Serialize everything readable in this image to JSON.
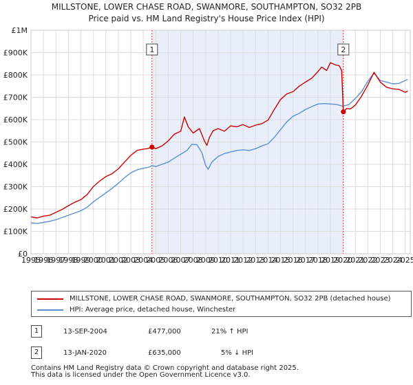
{
  "title_line1": "MILLSTONE, LOWER CHASE ROAD, SWANMORE, SOUTHAMPTON, SO32 2PB",
  "title_line2": "Price paid vs. HM Land Registry's House Price Index (HPI)",
  "chart_data": {
    "type": "line",
    "title": "MILLSTONE, LOWER CHASE ROAD, SWANMORE, SOUTHAMPTON, SO32 2PB — Price paid vs. HM Land Registry's House Price Index (HPI)",
    "xlim": [
      1995,
      2025.4
    ],
    "ylim": [
      0,
      1000000
    ],
    "x_ticks": [
      "1995",
      "1996",
      "1997",
      "1998",
      "1999",
      "2000",
      "2001",
      "2002",
      "2003",
      "2004",
      "2005",
      "2006",
      "2007",
      "2008",
      "2009",
      "2010",
      "2011",
      "2012",
      "2013",
      "2014",
      "2015",
      "2016",
      "2017",
      "2018",
      "2019",
      "2020",
      "2021",
      "2022",
      "2023",
      "2024",
      "2025"
    ],
    "y_ticks": [
      {
        "value": 0,
        "label": "£0"
      },
      {
        "value": 100000,
        "label": "£100K"
      },
      {
        "value": 200000,
        "label": "£200K"
      },
      {
        "value": 300000,
        "label": "£300K"
      },
      {
        "value": 400000,
        "label": "£400K"
      },
      {
        "value": 500000,
        "label": "£500K"
      },
      {
        "value": 600000,
        "label": "£600K"
      },
      {
        "value": 700000,
        "label": "£700K"
      },
      {
        "value": 800000,
        "label": "£800K"
      },
      {
        "value": 900000,
        "label": "£900K"
      },
      {
        "value": 1000000,
        "label": "£1M"
      }
    ],
    "grid": true,
    "shaded_region": {
      "x_start": 2004.7,
      "x_end": 2020.04,
      "color": "#e8eefa"
    },
    "series": [
      {
        "name": "MILLSTONE, LOWER CHASE ROAD, SWANMORE, SOUTHAMPTON, SO32 2PB (detached house)",
        "color": "#cc0000",
        "x": [
          1995,
          1995.5,
          1996,
          1996.5,
          1997,
          1997.5,
          1998,
          1998.5,
          1999,
          1999.5,
          2000,
          2000.5,
          2001,
          2001.5,
          2002,
          2002.5,
          2003,
          2003.5,
          2004,
          2004.3,
          2004.7,
          2005,
          2005.5,
          2006,
          2006.5,
          2007,
          2007.3,
          2007.6,
          2008,
          2008.5,
          2008.9,
          2009.1,
          2009.3,
          2009.6,
          2010,
          2010.5,
          2011,
          2011.5,
          2012,
          2012.5,
          2013,
          2013.5,
          2014,
          2014.5,
          2015,
          2015.5,
          2016,
          2016.5,
          2017,
          2017.5,
          2018,
          2018.3,
          2018.7,
          2019,
          2019.4,
          2019.7,
          2019.9,
          2020.04,
          2020.3,
          2020.6,
          2021,
          2021.5,
          2022,
          2022.5,
          2023,
          2023.5,
          2024,
          2024.5,
          2025,
          2025.2
        ],
        "values": [
          165000,
          160000,
          168000,
          172000,
          185000,
          198000,
          215000,
          230000,
          242000,
          265000,
          300000,
          325000,
          345000,
          358000,
          380000,
          410000,
          440000,
          462000,
          468000,
          470000,
          477000,
          470000,
          482000,
          505000,
          535000,
          548000,
          612000,
          568000,
          540000,
          560000,
          505000,
          485000,
          520000,
          550000,
          560000,
          548000,
          572000,
          568000,
          578000,
          565000,
          575000,
          582000,
          598000,
          645000,
          690000,
          715000,
          725000,
          750000,
          768000,
          785000,
          815000,
          835000,
          820000,
          855000,
          845000,
          842000,
          820000,
          635000,
          650000,
          648000,
          665000,
          705000,
          755000,
          812000,
          768000,
          745000,
          738000,
          735000,
          722000,
          728000
        ]
      },
      {
        "name": "HPI: Average price, detached house, Winchester",
        "color": "#5b8fd4",
        "x": [
          1995,
          1995.5,
          1996,
          1996.5,
          1997,
          1997.5,
          1998,
          1998.5,
          1999,
          1999.5,
          2000,
          2000.5,
          2001,
          2001.5,
          2002,
          2002.5,
          2003,
          2003.5,
          2004,
          2004.5,
          2004.7,
          2005,
          2005.5,
          2006,
          2006.5,
          2007,
          2007.5,
          2007.9,
          2008.3,
          2008.7,
          2009,
          2009.2,
          2009.5,
          2010,
          2010.5,
          2011,
          2011.5,
          2012,
          2012.5,
          2013,
          2013.5,
          2014,
          2014.5,
          2015,
          2015.5,
          2016,
          2016.5,
          2017,
          2017.5,
          2018,
          2018.5,
          2019,
          2019.5,
          2020,
          2020.5,
          2021,
          2021.5,
          2022,
          2022.5,
          2023,
          2023.5,
          2024,
          2024.5,
          2025,
          2025.2
        ],
        "values": [
          138000,
          135000,
          140000,
          145000,
          152000,
          162000,
          172000,
          182000,
          192000,
          208000,
          232000,
          252000,
          272000,
          292000,
          315000,
          340000,
          362000,
          375000,
          382000,
          388000,
          394000,
          390000,
          400000,
          410000,
          428000,
          445000,
          462000,
          490000,
          488000,
          452000,
          395000,
          378000,
          410000,
          435000,
          448000,
          455000,
          462000,
          465000,
          462000,
          470000,
          482000,
          492000,
          520000,
          555000,
          590000,
          615000,
          628000,
          645000,
          658000,
          670000,
          672000,
          670000,
          668000,
          660000,
          668000,
          695000,
          725000,
          772000,
          808000,
          775000,
          768000,
          760000,
          762000,
          775000,
          780000
        ]
      }
    ],
    "annotations": [
      {
        "label": "1",
        "x": 2004.7,
        "y": 477000
      },
      {
        "label": "2",
        "x": 2020.04,
        "y": 635000
      }
    ]
  },
  "legend": [
    {
      "label": "MILLSTONE, LOWER CHASE ROAD, SWANMORE, SOUTHAMPTON, SO32 2PB (detached house)",
      "color": "#cc0000"
    },
    {
      "label": "HPI: Average price, detached house, Winchester",
      "color": "#5b8fd4"
    }
  ],
  "transactions": [
    {
      "id": "1",
      "date": "13-SEP-2004",
      "price": "£477,000",
      "hpi": "21% ↑ HPI"
    },
    {
      "id": "2",
      "date": "13-JAN-2020",
      "price": "£635,000",
      "hpi": "5% ↓ HPI"
    }
  ],
  "footer_line1": "Contains HM Land Registry data © Crown copyright and database right 2025.",
  "footer_line2": "This data is licensed under the Open Government Licence v3.0."
}
